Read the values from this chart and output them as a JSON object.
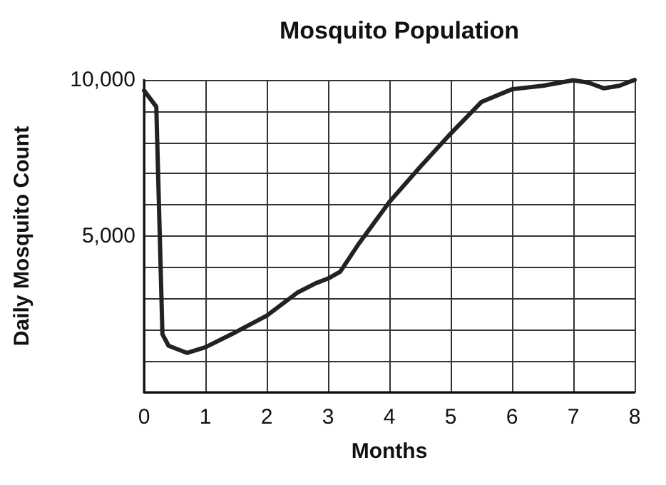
{
  "chart_data": {
    "type": "line",
    "title": "Mosquito Population",
    "xlabel": "Months",
    "ylabel": "Daily Mosquito Count",
    "x": [
      0,
      0.2,
      0.3,
      0.4,
      0.7,
      1,
      1.5,
      2,
      2.5,
      2.8,
      3,
      3.2,
      3.5,
      4,
      4.5,
      5,
      5.5,
      6,
      6.5,
      7,
      7.25,
      7.5,
      7.75,
      8
    ],
    "series": [
      {
        "color": "#222222",
        "values": [
          9660,
          9140,
          1860,
          1490,
          1260,
          1440,
          1930,
          2450,
          3190,
          3490,
          3640,
          3860,
          4750,
          6090,
          7210,
          8280,
          9290,
          9700,
          9810,
          9990,
          9910,
          9730,
          9810,
          10000
        ]
      }
    ],
    "xlim": [
      0,
      8
    ],
    "xticks": [
      0,
      1,
      2,
      3,
      4,
      5,
      6,
      7,
      8
    ],
    "ylim": [
      0,
      10000
    ],
    "yticks": [
      {
        "value": 0,
        "label": null
      },
      {
        "value": 1000,
        "label": null
      },
      {
        "value": 2000,
        "label": null
      },
      {
        "value": 3000,
        "label": null
      },
      {
        "value": 4000,
        "label": null
      },
      {
        "value": 5000,
        "label": "5,000"
      },
      {
        "value": 6000,
        "label": null
      },
      {
        "value": 7000,
        "label": null
      },
      {
        "value": 8000,
        "label": null
      },
      {
        "value": 9000,
        "label": null
      },
      {
        "value": 10000,
        "label": "10,000"
      }
    ],
    "grid": true,
    "marker": "none",
    "line_style": "solid"
  }
}
